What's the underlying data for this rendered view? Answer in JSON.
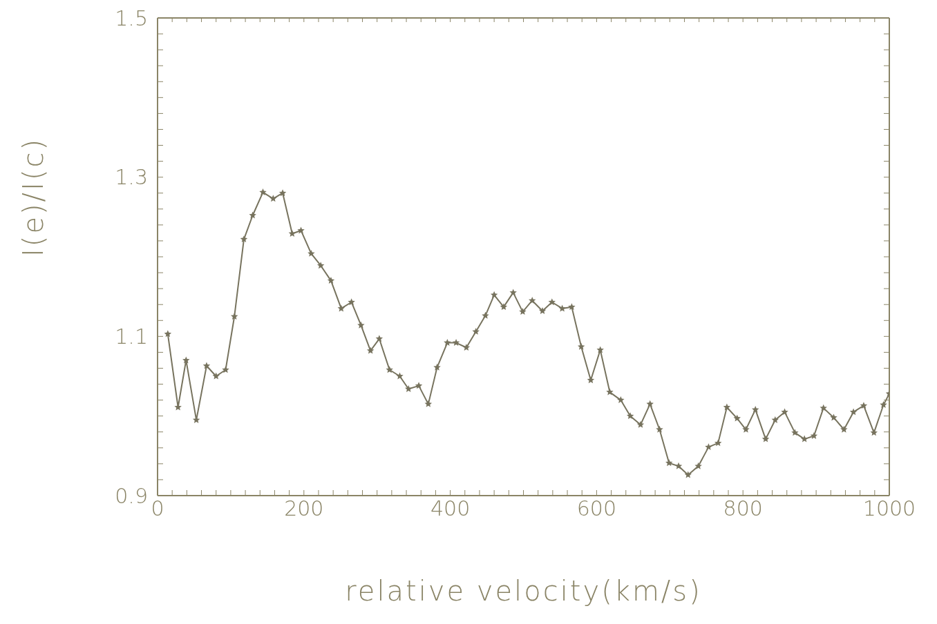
{
  "chart_data": {
    "type": "line",
    "xlabel": "relative velocity(km/s)",
    "ylabel": "I(e)/I(c)",
    "x": [
      14,
      28,
      39,
      53,
      67,
      80,
      93,
      105,
      118,
      130,
      144,
      158,
      171,
      184,
      196,
      210,
      223,
      237,
      251,
      265,
      278,
      291,
      303,
      317,
      331,
      343,
      357,
      370,
      382,
      396,
      408,
      422,
      435,
      448,
      460,
      473,
      486,
      499,
      512,
      526,
      539,
      553,
      566,
      579,
      592,
      605,
      618,
      633,
      646,
      660,
      673,
      686,
      699,
      712,
      725,
      739,
      753,
      766,
      778,
      792,
      804,
      817,
      831,
      844,
      857,
      871,
      884,
      897,
      910,
      924,
      938,
      951,
      965,
      979,
      992,
      1000
    ],
    "series": [
      {
        "color": "#77735e",
        "values": [
          1.103,
          1.011,
          1.07,
          0.995,
          1.063,
          1.05,
          1.058,
          1.125,
          1.222,
          1.252,
          1.281,
          1.273,
          1.28,
          1.229,
          1.233,
          1.204,
          1.189,
          1.17,
          1.135,
          1.143,
          1.114,
          1.082,
          1.097,
          1.058,
          1.05,
          1.034,
          1.038,
          1.015,
          1.061,
          1.092,
          1.092,
          1.086,
          1.106,
          1.126,
          1.152,
          1.137,
          1.155,
          1.131,
          1.145,
          1.132,
          1.143,
          1.135,
          1.137,
          1.087,
          1.045,
          1.083,
          1.03,
          1.02,
          1.0,
          0.989,
          1.015,
          0.983,
          0.941,
          0.937,
          0.926,
          0.937,
          0.961,
          0.966,
          1.011,
          0.997,
          0.983,
          1.008,
          0.971,
          0.995,
          1.005,
          0.979,
          0.971,
          0.975,
          1.01,
          0.998,
          0.983,
          1.005,
          1.013,
          0.979,
          1.014,
          1.028
        ]
      }
    ],
    "xlim": [
      0,
      1000
    ],
    "xticks": [
      0,
      {
        "value": 20,
        "label": null
      },
      {
        "value": 40,
        "label": null
      },
      {
        "value": 60,
        "label": null
      },
      {
        "value": 80,
        "label": null
      },
      {
        "value": 100,
        "label": null
      },
      {
        "value": 120,
        "label": null
      },
      {
        "value": 140,
        "label": null
      },
      {
        "value": 160,
        "label": null
      },
      {
        "value": 180,
        "label": null
      },
      200,
      {
        "value": 220,
        "label": null
      },
      {
        "value": 240,
        "label": null
      },
      {
        "value": 260,
        "label": null
      },
      {
        "value": 280,
        "label": null
      },
      {
        "value": 300,
        "label": null
      },
      {
        "value": 320,
        "label": null
      },
      {
        "value": 340,
        "label": null
      },
      {
        "value": 360,
        "label": null
      },
      {
        "value": 380,
        "label": null
      },
      400,
      {
        "value": 420,
        "label": null
      },
      {
        "value": 440,
        "label": null
      },
      {
        "value": 460,
        "label": null
      },
      {
        "value": 480,
        "label": null
      },
      {
        "value": 500,
        "label": null
      },
      {
        "value": 520,
        "label": null
      },
      {
        "value": 540,
        "label": null
      },
      {
        "value": 560,
        "label": null
      },
      {
        "value": 580,
        "label": null
      },
      600,
      {
        "value": 620,
        "label": null
      },
      {
        "value": 640,
        "label": null
      },
      {
        "value": 660,
        "label": null
      },
      {
        "value": 680,
        "label": null
      },
      {
        "value": 700,
        "label": null
      },
      {
        "value": 720,
        "label": null
      },
      {
        "value": 740,
        "label": null
      },
      {
        "value": 760,
        "label": null
      },
      {
        "value": 780,
        "label": null
      },
      800,
      {
        "value": 820,
        "label": null
      },
      {
        "value": 840,
        "label": null
      },
      {
        "value": 860,
        "label": null
      },
      {
        "value": 880,
        "label": null
      },
      {
        "value": 900,
        "label": null
      },
      {
        "value": 920,
        "label": null
      },
      {
        "value": 940,
        "label": null
      },
      {
        "value": 960,
        "label": null
      },
      {
        "value": 980,
        "label": null
      },
      1000
    ],
    "ylim": [
      0.9,
      1.5
    ],
    "yticks": [
      {
        "value": 0.9,
        "label": "0.9"
      },
      {
        "value": 0.92,
        "label": null
      },
      {
        "value": 0.94,
        "label": null
      },
      {
        "value": 0.96,
        "label": null
      },
      {
        "value": 0.98,
        "label": null
      },
      {
        "value": 1.0,
        "label": null
      },
      {
        "value": 1.02,
        "label": null
      },
      {
        "value": 1.04,
        "label": null
      },
      {
        "value": 1.06,
        "label": null
      },
      {
        "value": 1.08,
        "label": null
      },
      {
        "value": 1.1,
        "label": "1.1"
      },
      {
        "value": 1.12,
        "label": null
      },
      {
        "value": 1.14,
        "label": null
      },
      {
        "value": 1.16,
        "label": null
      },
      {
        "value": 1.18,
        "label": null
      },
      {
        "value": 1.2,
        "label": null
      },
      {
        "value": 1.22,
        "label": null
      },
      {
        "value": 1.24,
        "label": null
      },
      {
        "value": 1.26,
        "label": null
      },
      {
        "value": 1.28,
        "label": null
      },
      {
        "value": 1.3,
        "label": "1.3"
      },
      {
        "value": 1.32,
        "label": null
      },
      {
        "value": 1.34,
        "label": null
      },
      {
        "value": 1.36,
        "label": null
      },
      {
        "value": 1.38,
        "label": null
      },
      {
        "value": 1.4,
        "label": null
      },
      {
        "value": 1.42,
        "label": null
      },
      {
        "value": 1.44,
        "label": null
      },
      {
        "value": 1.46,
        "label": null
      },
      {
        "value": 1.48,
        "label": null
      },
      {
        "value": 1.5,
        "label": "1.5"
      }
    ],
    "grid": false,
    "legend": false,
    "marker": "star",
    "line_style": "solid"
  }
}
